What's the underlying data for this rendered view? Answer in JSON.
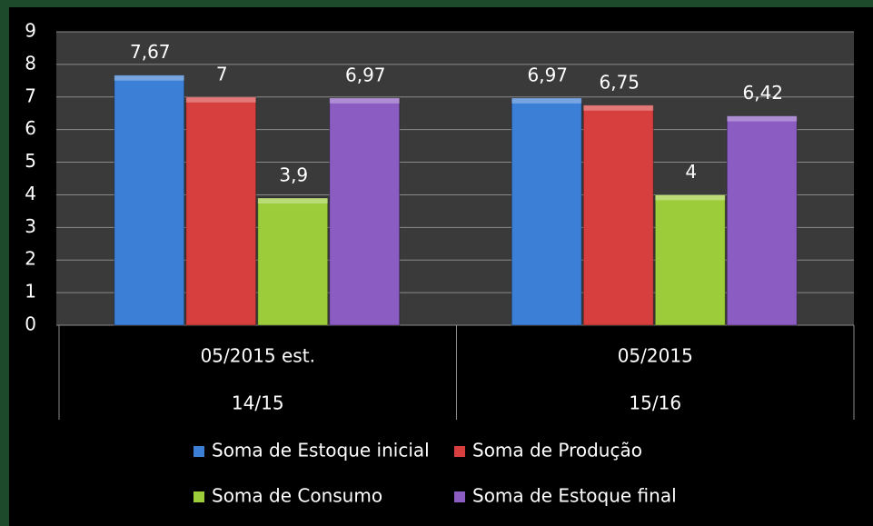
{
  "chart_data": {
    "type": "bar",
    "categories": [
      "05/2015 est.",
      "05/2015"
    ],
    "category_groups": [
      "14/15",
      "15/16"
    ],
    "series": [
      {
        "name": "Soma de Estoque inicial",
        "color": "#3b7fd6",
        "values": [
          7.67,
          6.97
        ],
        "value_labels": [
          "7,67",
          "6,97"
        ]
      },
      {
        "name": "Soma de Produção",
        "color": "#d73e3e",
        "values": [
          7,
          6.75
        ],
        "value_labels": [
          "7",
          "6,75"
        ]
      },
      {
        "name": "Soma de Consumo",
        "color": "#9dcc3a",
        "values": [
          3.9,
          4
        ],
        "value_labels": [
          "3,9",
          "4"
        ]
      },
      {
        "name": "Soma de Estoque final",
        "color": "#8b5cc2",
        "values": [
          6.97,
          6.42
        ],
        "value_labels": [
          "6,97",
          "6,42"
        ]
      }
    ],
    "ylim": [
      0,
      9
    ],
    "yticks": [
      0,
      1,
      2,
      3,
      4,
      5,
      6,
      7,
      8,
      9
    ],
    "grid": true,
    "legend": "bottom"
  }
}
